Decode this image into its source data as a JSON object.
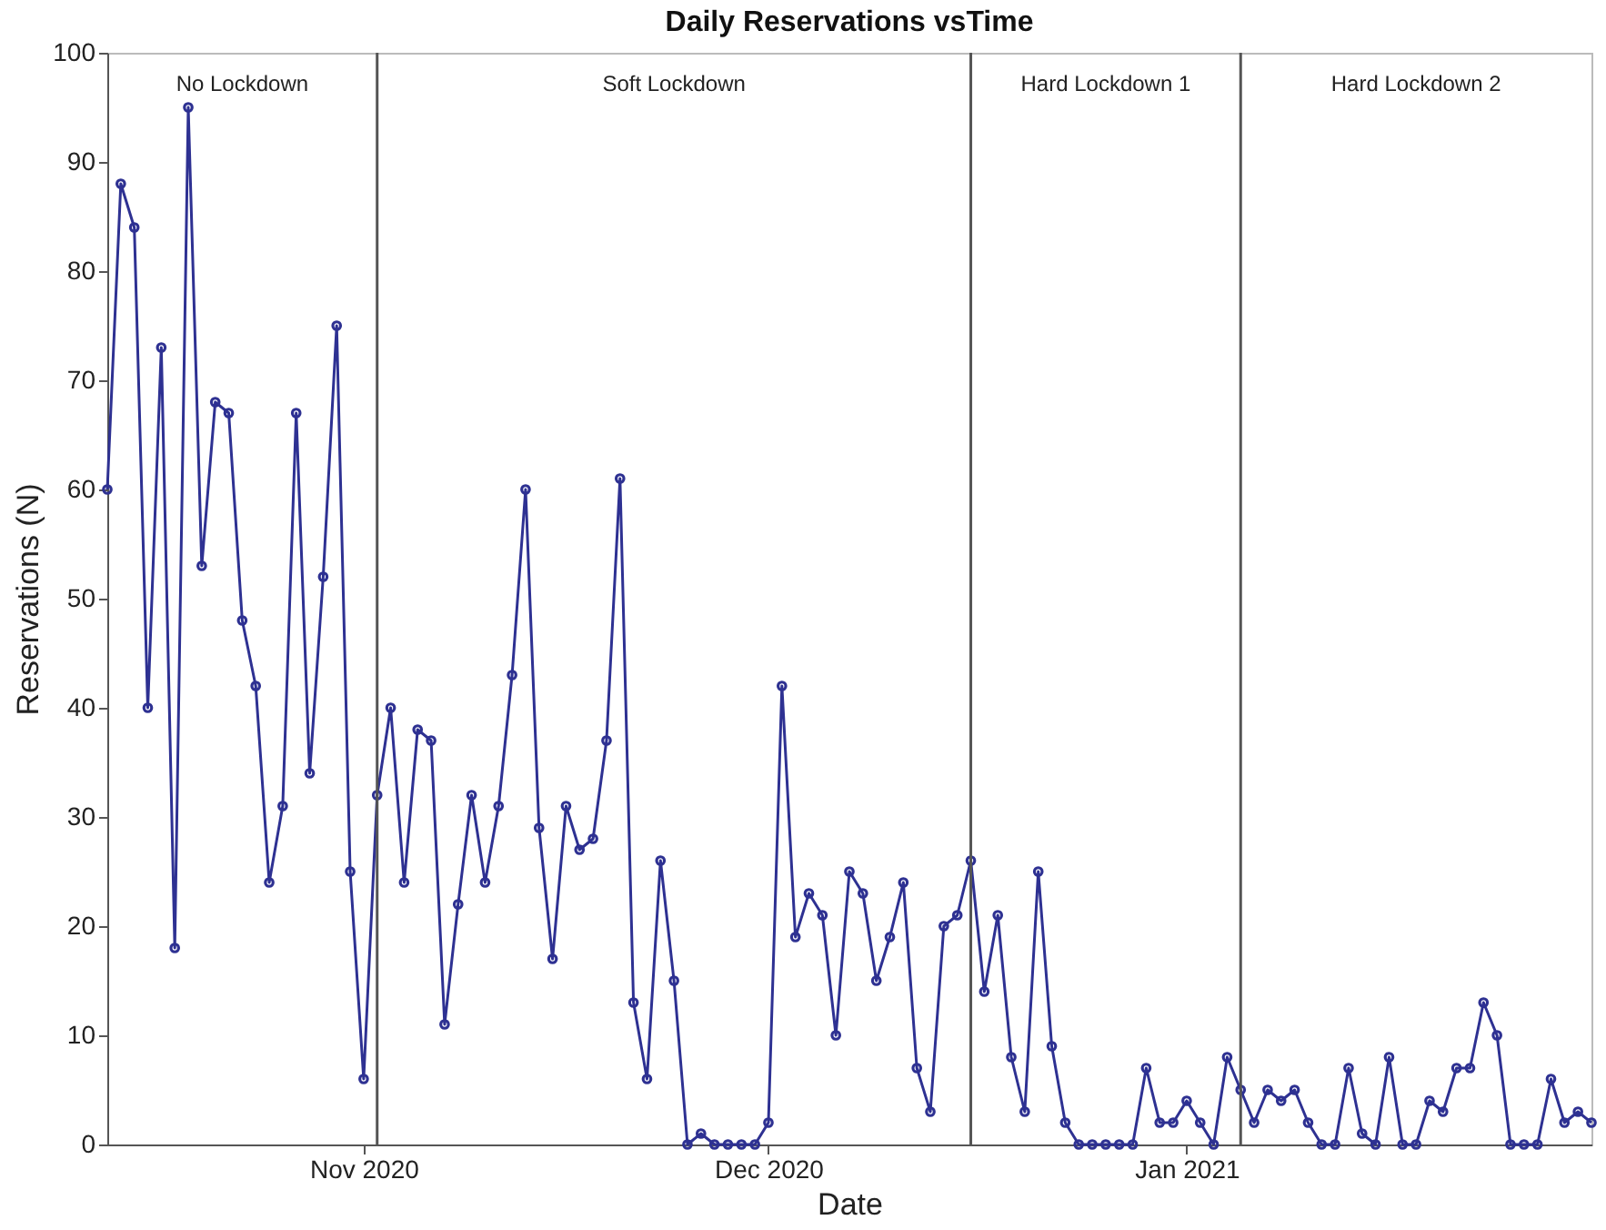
{
  "chart_data": {
    "type": "line",
    "title": "Daily Reservations vsTime",
    "xlabel": "Date",
    "ylabel": "Reservations (N)",
    "x": [
      "2020-10-13",
      "2020-10-14",
      "2020-10-15",
      "2020-10-16",
      "2020-10-17",
      "2020-10-18",
      "2020-10-19",
      "2020-10-20",
      "2020-10-21",
      "2020-10-22",
      "2020-10-23",
      "2020-10-24",
      "2020-10-25",
      "2020-10-26",
      "2020-10-27",
      "2020-10-28",
      "2020-10-29",
      "2020-10-30",
      "2020-10-31",
      "2020-11-01",
      "2020-11-02",
      "2020-11-03",
      "2020-11-04",
      "2020-11-05",
      "2020-11-06",
      "2020-11-07",
      "2020-11-08",
      "2020-11-09",
      "2020-11-10",
      "2020-11-11",
      "2020-11-12",
      "2020-11-13",
      "2020-11-14",
      "2020-11-15",
      "2020-11-16",
      "2020-11-17",
      "2020-11-18",
      "2020-11-19",
      "2020-11-20",
      "2020-11-21",
      "2020-11-22",
      "2020-11-23",
      "2020-11-24",
      "2020-11-25",
      "2020-11-26",
      "2020-11-27",
      "2020-11-28",
      "2020-11-29",
      "2020-11-30",
      "2020-12-01",
      "2020-12-02",
      "2020-12-03",
      "2020-12-04",
      "2020-12-05",
      "2020-12-06",
      "2020-12-07",
      "2020-12-08",
      "2020-12-09",
      "2020-12-10",
      "2020-12-11",
      "2020-12-12",
      "2020-12-13",
      "2020-12-14",
      "2020-12-15",
      "2020-12-16",
      "2020-12-17",
      "2020-12-18",
      "2020-12-19",
      "2020-12-20",
      "2020-12-21",
      "2020-12-22",
      "2020-12-23",
      "2020-12-24",
      "2020-12-25",
      "2020-12-26",
      "2020-12-27",
      "2020-12-28",
      "2020-12-29",
      "2020-12-30",
      "2020-12-31",
      "2021-01-01",
      "2021-01-02",
      "2021-01-03",
      "2021-01-04",
      "2021-01-05",
      "2021-01-06",
      "2021-01-07",
      "2021-01-08",
      "2021-01-09",
      "2021-01-10",
      "2021-01-11",
      "2021-01-12",
      "2021-01-13",
      "2021-01-14",
      "2021-01-15",
      "2021-01-16",
      "2021-01-17",
      "2021-01-18",
      "2021-01-19",
      "2021-01-20",
      "2021-01-21",
      "2021-01-22",
      "2021-01-23",
      "2021-01-24",
      "2021-01-25",
      "2021-01-26",
      "2021-01-27",
      "2021-01-28",
      "2021-01-29",
      "2021-01-30",
      "2021-01-31"
    ],
    "series": [
      {
        "color": "#2e3192",
        "values": [
          60,
          88,
          84,
          40,
          73,
          18,
          95,
          53,
          68,
          67,
          48,
          42,
          24,
          31,
          67,
          34,
          52,
          75,
          25,
          6,
          32,
          40,
          24,
          38,
          37,
          11,
          22,
          32,
          24,
          31,
          43,
          60,
          29,
          17,
          31,
          27,
          28,
          37,
          61,
          13,
          6,
          26,
          15,
          0,
          1,
          0,
          0,
          0,
          0,
          2,
          42,
          19,
          23,
          21,
          10,
          25,
          23,
          15,
          19,
          24,
          7,
          3,
          20,
          21,
          26,
          14,
          21,
          8,
          3,
          25,
          9,
          2,
          0,
          0,
          0,
          0,
          0,
          7,
          2,
          2,
          4,
          2,
          0,
          8,
          5,
          2,
          5,
          4,
          5,
          2,
          0,
          0,
          7,
          1,
          0,
          8,
          0,
          0,
          4,
          3,
          7,
          7,
          13,
          10,
          0,
          0,
          0,
          6,
          2,
          3,
          2
        ]
      }
    ],
    "xlim": [
      "2020-10-13",
      "2021-01-31"
    ],
    "xticks": [
      {
        "value": "2020-11-01",
        "label": "Nov 2020"
      },
      {
        "value": "2020-12-01",
        "label": "Dec 2020"
      },
      {
        "value": "2021-01-01",
        "label": "Jan 2021"
      }
    ],
    "ylim": [
      0,
      100
    ],
    "yticks": [
      0,
      10,
      20,
      30,
      40,
      50,
      60,
      70,
      80,
      90,
      100
    ],
    "ref_lines": [
      {
        "axis": "x",
        "value": "2020-11-02",
        "color": "#555555"
      },
      {
        "axis": "x",
        "value": "2020-12-16",
        "color": "#555555"
      },
      {
        "axis": "x",
        "value": "2021-01-05",
        "color": "#555555"
      }
    ],
    "annotations": [
      "No Lockdown",
      "Soft Lockdown",
      "Hard Lockdown 1",
      "Hard Lockdown 2"
    ],
    "grid": false,
    "legend": false,
    "marker": "circle",
    "line_style": "solid"
  }
}
